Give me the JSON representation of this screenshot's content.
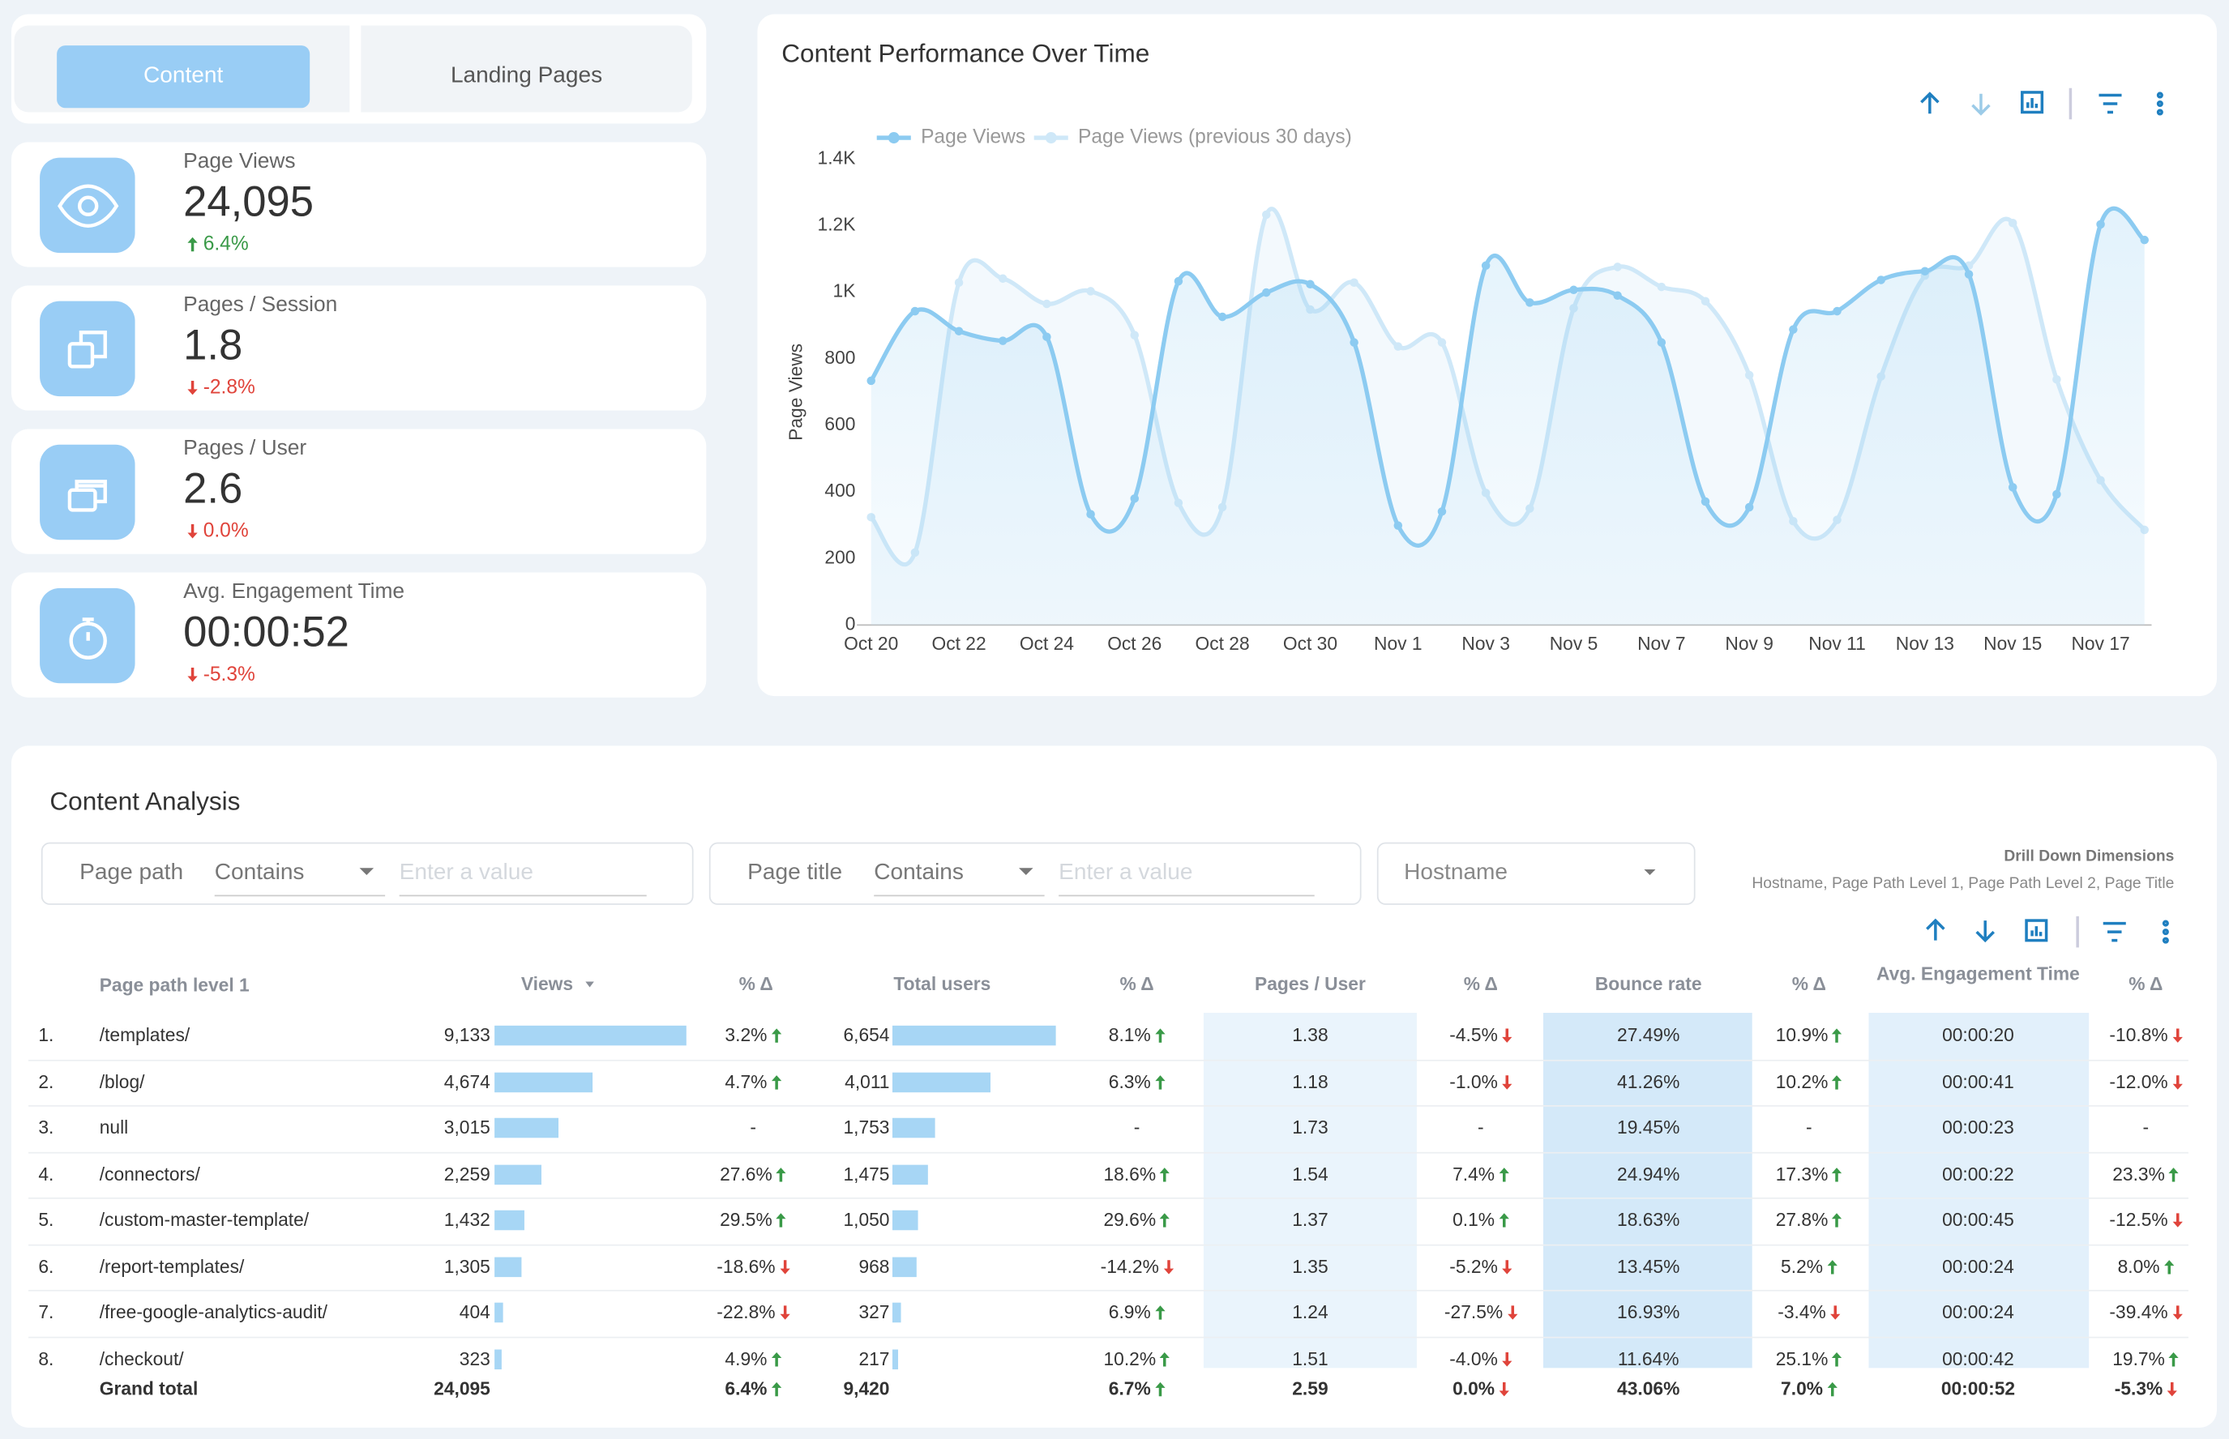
{
  "tabs": [
    "Content",
    "Landing Pages"
  ],
  "kpis": [
    {
      "label": "Page Views",
      "value": "24,095",
      "change": "6.4%",
      "trend": "up"
    },
    {
      "label": "Pages / Session",
      "value": "1.8",
      "change": "-2.8%",
      "trend": "down"
    },
    {
      "label": "Pages / User",
      "value": "2.6",
      "change": "0.0%",
      "trend": "down"
    },
    {
      "label": "Avg. Engagement Time",
      "value": "00:00:52",
      "change": "-5.3%",
      "trend": "down"
    }
  ],
  "chart_data": {
    "type": "line",
    "title": "Content Performance Over Time",
    "y_label": "Page Views",
    "categories": [
      "Oct 20",
      null,
      "Oct 22",
      null,
      "Oct 24",
      null,
      "Oct 26",
      null,
      "Oct 28",
      null,
      "Oct 30",
      null,
      "Nov 1",
      null,
      "Nov 3",
      null,
      "Nov 5",
      null,
      "Nov 7",
      null,
      "Nov 9",
      null,
      "Nov 11",
      null,
      "Nov 13",
      null,
      "Nov 15",
      null,
      "Nov 17",
      null
    ],
    "series": [
      {
        "name": "Page Views",
        "color": "#8ccbf1",
        "values": [
          734,
          943,
          883,
          854,
          866,
          333,
          380,
          1033,
          926,
          999,
          1024,
          849,
          299,
          341,
          1080,
          969,
          1007,
          990,
          849,
          371,
          354,
          888,
          943,
          1037,
          1063,
          1054,
          414,
          393,
          1204,
          1157
        ]
      },
      {
        "name": "Page Views (previous 30 days)",
        "color": "#cfe8f8",
        "values": [
          324,
          218,
          1029,
          1041,
          965,
          1003,
          871,
          367,
          354,
          1233,
          948,
          1029,
          837,
          849,
          397,
          350,
          952,
          1076,
          1016,
          973,
          751,
          312,
          316,
          747,
          1050,
          1080,
          1208,
          738,
          435,
          286
        ]
      }
    ],
    "ylim": [
      0,
      1400
    ],
    "yticks": [
      0,
      200,
      400,
      600,
      800,
      {
        "value": 1000,
        "label": "1K"
      },
      {
        "value": 1200,
        "label": "1.2K"
      },
      {
        "value": 1400,
        "label": "1.4K"
      }
    ],
    "legend": "top-left"
  },
  "table": {
    "title": "Content Analysis",
    "filters": [
      {
        "field": "Page path",
        "operator": "Contains",
        "placeholder": "Enter a value"
      },
      {
        "field": "Page title",
        "operator": "Contains",
        "placeholder": "Enter a value"
      },
      {
        "field": "Hostname"
      }
    ],
    "drill_title": "Drill Down Dimensions",
    "drill_text": "Hostname, Page Path Level 1, Page Path Level 2, Page Title",
    "columns": [
      "Page path level 1",
      "Views",
      "% Δ",
      "Total users",
      "% Δ",
      "Pages / User",
      "% Δ",
      "Bounce rate",
      "% Δ",
      "Avg. Engagement Time",
      "% Δ"
    ],
    "rows": [
      {
        "rank": "1.",
        "path": "/templates/",
        "cells": [
          {
            "value": 9133,
            "label": "9,133"
          },
          {
            "text": "3.2%",
            "trend": "up"
          },
          {
            "value": 6654,
            "label": "6,654"
          },
          {
            "text": "8.1%",
            "trend": "up"
          },
          "1.38",
          {
            "text": "-4.5%",
            "trend": "down"
          },
          "27.49%",
          {
            "text": "10.9%",
            "trend": "up"
          },
          "00:00:20",
          {
            "text": "-10.8%",
            "trend": "down"
          }
        ]
      },
      {
        "rank": "2.",
        "path": "/blog/",
        "cells": [
          {
            "value": 4674,
            "label": "4,674"
          },
          {
            "text": "4.7%",
            "trend": "up"
          },
          {
            "value": 4011,
            "label": "4,011"
          },
          {
            "text": "6.3%",
            "trend": "up"
          },
          "1.18",
          {
            "text": "-1.0%",
            "trend": "down"
          },
          "41.26%",
          {
            "text": "10.2%",
            "trend": "up"
          },
          "00:00:41",
          {
            "text": "-12.0%",
            "trend": "down"
          }
        ]
      },
      {
        "rank": "3.",
        "path": "null",
        "cells": [
          {
            "value": 3015,
            "label": "3,015"
          },
          {
            "text": "-"
          },
          {
            "value": 1753,
            "label": "1,753"
          },
          {
            "text": "-"
          },
          "1.73",
          {
            "text": "-"
          },
          "19.45%",
          {
            "text": "-"
          },
          "00:00:23",
          {
            "text": "-"
          }
        ]
      },
      {
        "rank": "4.",
        "path": "/connectors/",
        "cells": [
          {
            "value": 2259,
            "label": "2,259"
          },
          {
            "text": "27.6%",
            "trend": "up"
          },
          {
            "value": 1475,
            "label": "1,475"
          },
          {
            "text": "18.6%",
            "trend": "up"
          },
          "1.54",
          {
            "text": "7.4%",
            "trend": "up"
          },
          "24.94%",
          {
            "text": "17.3%",
            "trend": "up"
          },
          "00:00:22",
          {
            "text": "23.3%",
            "trend": "up"
          }
        ]
      },
      {
        "rank": "5.",
        "path": "/custom-master-template/",
        "cells": [
          {
            "value": 1432,
            "label": "1,432"
          },
          {
            "text": "29.5%",
            "trend": "up"
          },
          {
            "value": 1050,
            "label": "1,050"
          },
          {
            "text": "29.6%",
            "trend": "up"
          },
          "1.37",
          {
            "text": "0.1%",
            "trend": "up"
          },
          "18.63%",
          {
            "text": "27.8%",
            "trend": "up"
          },
          "00:00:45",
          {
            "text": "-12.5%",
            "trend": "down"
          }
        ]
      },
      {
        "rank": "6.",
        "path": "/report-templates/",
        "cells": [
          {
            "value": 1305,
            "label": "1,305"
          },
          {
            "text": "-18.6%",
            "trend": "down"
          },
          {
            "value": 968,
            "label": "968"
          },
          {
            "text": "-14.2%",
            "trend": "down"
          },
          "1.35",
          {
            "text": "-5.2%",
            "trend": "down"
          },
          "13.45%",
          {
            "text": "5.2%",
            "trend": "up"
          },
          "00:00:24",
          {
            "text": "8.0%",
            "trend": "up"
          }
        ]
      },
      {
        "rank": "7.",
        "path": "/free-google-analytics-audit/",
        "cells": [
          {
            "value": 404,
            "label": "404"
          },
          {
            "text": "-22.8%",
            "trend": "down"
          },
          {
            "value": 327,
            "label": "327"
          },
          {
            "text": "6.9%",
            "trend": "up"
          },
          "1.24",
          {
            "text": "-27.5%",
            "trend": "down"
          },
          "16.93%",
          {
            "text": "-3.4%",
            "trend": "down"
          },
          "00:00:24",
          {
            "text": "-39.4%",
            "trend": "down"
          }
        ]
      },
      {
        "rank": "8.",
        "path": "/checkout/",
        "cells": [
          {
            "value": 323,
            "label": "323"
          },
          {
            "text": "4.9%",
            "trend": "up"
          },
          {
            "value": 217,
            "label": "217"
          },
          {
            "text": "10.2%",
            "trend": "up"
          },
          "1.51",
          {
            "text": "-4.0%",
            "trend": "down"
          },
          "11.64%",
          {
            "text": "25.1%",
            "trend": "up"
          },
          "00:00:42",
          {
            "text": "19.7%",
            "trend": "up"
          }
        ]
      }
    ],
    "total": {
      "label": "Grand total",
      "cells": [
        "24,095",
        {
          "text": "6.4%",
          "trend": "up"
        },
        "9,420",
        {
          "text": "6.7%",
          "trend": "up"
        },
        "2.59",
        {
          "text": "0.0%",
          "trend": "down"
        },
        "43.06%",
        {
          "text": "7.0%",
          "trend": "up"
        },
        "00:00:52",
        {
          "text": "-5.3%",
          "trend": "down"
        }
      ]
    }
  }
}
